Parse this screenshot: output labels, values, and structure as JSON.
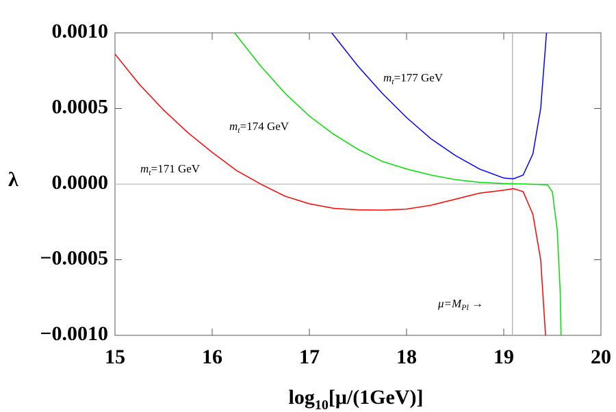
{
  "chart_data": {
    "type": "line",
    "y_label": "λ",
    "x_label": {
      "base": "log",
      "sub": "10",
      "text": "[μ/(1GeV)]"
    },
    "xlim": [
      15,
      20
    ],
    "ylim": [
      -0.001,
      0.001
    ],
    "xticks": [
      15,
      16,
      17,
      18,
      19,
      20
    ],
    "yticks": [
      {
        "value": 0.001,
        "label": "0.0010"
      },
      {
        "value": 0.0005,
        "label": "0.0005"
      },
      {
        "value": 0,
        "label": "0.0000"
      },
      {
        "value": -0.0005,
        "label": "−0.0005"
      },
      {
        "value": -0.001,
        "label": "−0.0010"
      }
    ],
    "vline": 19.09,
    "series": [
      {
        "name": "m_t=171 GeV",
        "color": "#ff0000",
        "x": [
          15,
          15.25,
          15.5,
          15.75,
          16,
          16.25,
          16.5,
          16.75,
          17,
          17.25,
          17.5,
          17.75,
          18,
          18.25,
          18.5,
          18.75,
          19,
          19.1,
          19.2,
          19.3,
          19.38,
          19.43
        ],
        "values": [
          0.00086,
          0.00066,
          0.00049,
          0.00034,
          0.00021,
          9e-05,
          0,
          -8e-05,
          -0.00013,
          -0.00016,
          -0.00017,
          -0.000172,
          -0.000165,
          -0.00014,
          -0.0001,
          -6e-05,
          -4e-05,
          -3e-05,
          -5e-05,
          -0.0002,
          -0.0005,
          -0.001
        ]
      },
      {
        "name": "m_t=174 GeV",
        "color": "#00e000",
        "x": [
          16.23,
          16.5,
          16.75,
          17,
          17.25,
          17.5,
          17.75,
          18,
          18.25,
          18.5,
          18.75,
          19,
          19.25,
          19.45,
          19.5,
          19.55,
          19.58,
          19.59
        ],
        "values": [
          0.001,
          0.00078,
          0.0006,
          0.00045,
          0.00033,
          0.00023,
          0.00015,
          0.0001,
          6e-05,
          3e-05,
          1.2e-05,
          4e-06,
          0,
          -5e-06,
          -5e-05,
          -0.0003,
          -0.0007,
          -0.001
        ]
      },
      {
        "name": "m_t=177 GeV",
        "color": "#0000ff",
        "x": [
          17.23,
          17.5,
          17.75,
          18,
          18.25,
          18.5,
          18.75,
          19,
          19.1,
          19.2,
          19.3,
          19.38,
          19.44
        ],
        "values": [
          0.001,
          0.00078,
          0.0006,
          0.00044,
          0.0003,
          0.00019,
          0.0001,
          4e-05,
          3.5e-05,
          6e-05,
          0.0002,
          0.0005,
          0.001
        ]
      }
    ],
    "annotations": [
      {
        "base": "m",
        "sub": "t",
        "text": "=171 GeV"
      },
      {
        "base": "m",
        "sub": "t",
        "text": "=174 GeV"
      },
      {
        "base": "m",
        "sub": "t",
        "text": "=177 GeV"
      },
      {
        "base": "μ=M",
        "sub": "Pl",
        "text": " →"
      }
    ]
  }
}
